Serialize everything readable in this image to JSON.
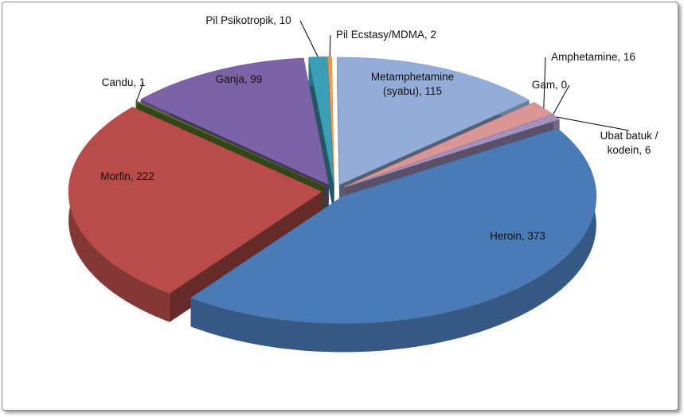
{
  "chart_data": {
    "type": "pie3d",
    "categories": [
      "Metamphetamine (syabu)",
      "Amphetamine",
      "Gam",
      "Ubat batuk / kodein",
      "Heroin",
      "Morfin",
      "Candu",
      "Ganja",
      "Pil Psikotropik",
      "Pil Ecstasy/MDMA"
    ],
    "values": [
      115,
      16,
      0,
      6,
      373,
      222,
      1,
      99,
      10,
      2
    ],
    "value_labels": [
      "Metamphetamine (syabu), 115",
      "Amphetamine, 16",
      "Gam, 0",
      "Ubat batuk / kodein, 6",
      "Heroin, 373",
      "Morfin, 222",
      "Candu, 1",
      "Ganja, 99",
      "Pil Psikotropik, 10",
      "Pil Ecstasy/MDMA, 2"
    ],
    "colors": [
      "#93acd8",
      "#d99694",
      "#b3a2c7",
      "#a392c0",
      "#4a7bb7",
      "#b94c49",
      "#5e7f2c",
      "#7c62a6",
      "#3b9fb8",
      "#f79646"
    ],
    "exploded": true
  }
}
